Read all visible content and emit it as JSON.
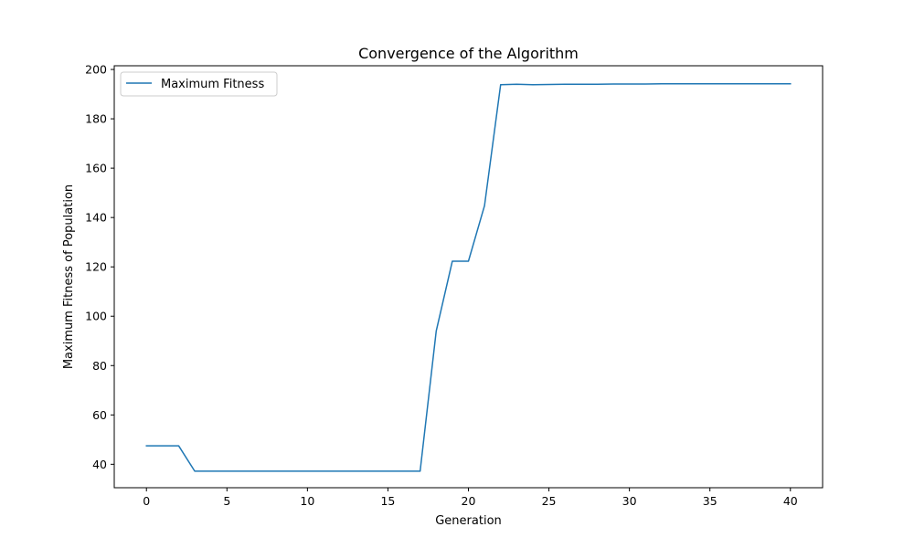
{
  "chart_data": {
    "type": "line",
    "title": "Convergence of the Algorithm",
    "xlabel": "Generation",
    "ylabel": "Maximum Fitness of Population",
    "xlim": [
      -2,
      42
    ],
    "ylim": [
      30.5,
      201.5
    ],
    "xticks": [
      0,
      5,
      10,
      15,
      20,
      25,
      30,
      35,
      40
    ],
    "yticks": [
      40,
      60,
      80,
      100,
      120,
      140,
      160,
      180,
      200
    ],
    "grid": false,
    "legend_position": "top-left",
    "series": [
      {
        "name": "Maximum Fitness",
        "color": "#1f77b4",
        "x": [
          0,
          1,
          2,
          3,
          4,
          5,
          6,
          7,
          8,
          9,
          10,
          11,
          12,
          13,
          14,
          15,
          16,
          17,
          18,
          19,
          20,
          21,
          22,
          23,
          24,
          25,
          26,
          27,
          28,
          29,
          30,
          31,
          32,
          33,
          34,
          35,
          36,
          37,
          38,
          39,
          40
        ],
        "y": [
          47.5,
          47.5,
          47.5,
          37.2,
          37.2,
          37.2,
          37.2,
          37.2,
          37.2,
          37.2,
          37.2,
          37.2,
          37.2,
          37.2,
          37.2,
          37.2,
          37.2,
          37.2,
          94.0,
          122.3,
          122.3,
          144.8,
          193.8,
          194.0,
          193.8,
          193.9,
          194.0,
          194.0,
          194.0,
          194.1,
          194.1,
          194.1,
          194.2,
          194.2,
          194.2,
          194.2,
          194.2,
          194.2,
          194.2,
          194.2,
          194.2
        ]
      }
    ]
  }
}
